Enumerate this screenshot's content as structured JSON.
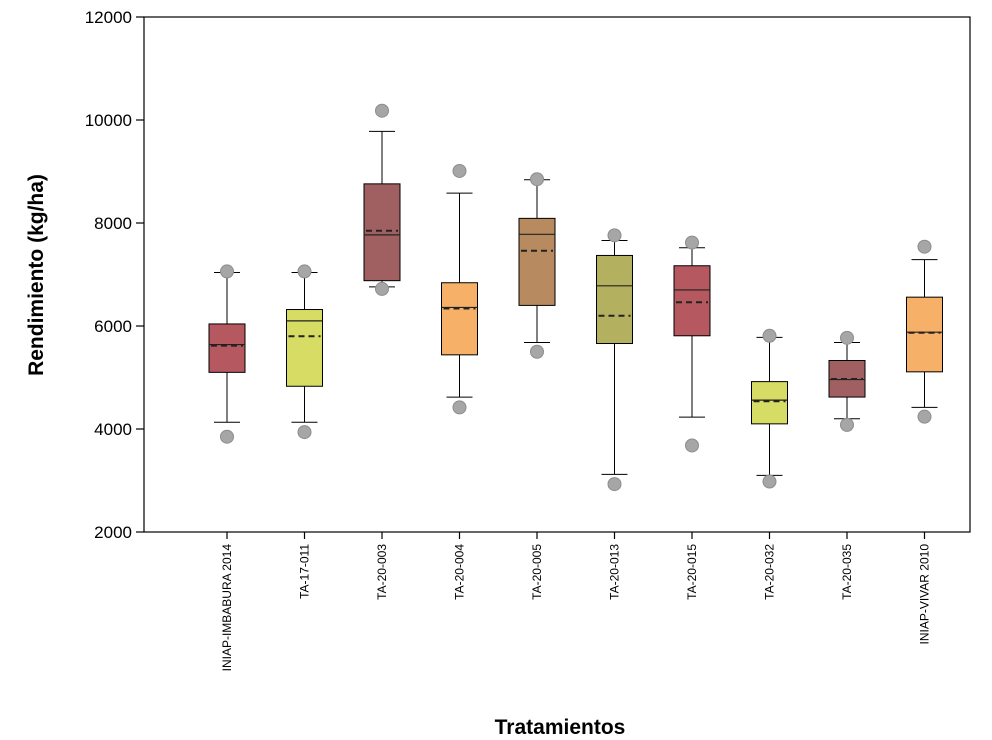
{
  "chart_data": {
    "type": "box",
    "title": "",
    "xlabel": "Tratamientos",
    "ylabel": "Rendimiento (kg/ha)",
    "ylim": [
      2000,
      12000
    ],
    "yticks": [
      2000,
      4000,
      6000,
      8000,
      10000,
      12000
    ],
    "grid": false,
    "legend": "none",
    "categories": [
      "INIAP-IMBABURA 2014",
      "TA-17-011",
      "TA-20-003",
      "TA-20-004",
      "TA-20-005",
      "TA-20-013",
      "TA-20-015",
      "TA-20-032",
      "TA-20-035",
      "INIAP-VIVAR 2010"
    ],
    "boxes": [
      {
        "whisker_low": 4130,
        "q1": 5100,
        "median": 5640,
        "mean": 5620,
        "q3": 6040,
        "whisker_high": 7040,
        "outliers": [
          3850,
          7060
        ],
        "color": "#b5585f"
      },
      {
        "whisker_low": 4130,
        "q1": 4830,
        "median": 6100,
        "mean": 5800,
        "q3": 6320,
        "whisker_high": 7040,
        "outliers": [
          3940,
          7060
        ],
        "color": "#d6dc64"
      },
      {
        "whisker_low": 6760,
        "q1": 6880,
        "median": 7770,
        "mean": 7850,
        "q3": 8760,
        "whisker_high": 9780,
        "outliers": [
          6720,
          10180
        ],
        "color": "#a06062"
      },
      {
        "whisker_low": 4620,
        "q1": 5440,
        "median": 6360,
        "mean": 6340,
        "q3": 6840,
        "whisker_high": 8580,
        "outliers": [
          4420,
          9010
        ],
        "color": "#f7b068"
      },
      {
        "whisker_low": 5680,
        "q1": 6400,
        "median": 7780,
        "mean": 7460,
        "q3": 8090,
        "whisker_high": 8840,
        "outliers": [
          5500,
          8850
        ],
        "color": "#b88a60"
      },
      {
        "whisker_low": 3120,
        "q1": 5660,
        "median": 6780,
        "mean": 6200,
        "q3": 7370,
        "whisker_high": 7660,
        "outliers": [
          2930,
          7760
        ],
        "color": "#b3b060"
      },
      {
        "whisker_low": 4230,
        "q1": 5810,
        "median": 6700,
        "mean": 6460,
        "q3": 7170,
        "whisker_high": 7520,
        "outliers": [
          3680,
          7620
        ],
        "color": "#b5585f"
      },
      {
        "whisker_low": 3100,
        "q1": 4100,
        "median": 4560,
        "mean": 4540,
        "q3": 4920,
        "whisker_high": 5780,
        "outliers": [
          2980,
          5810
        ],
        "color": "#d6dc64"
      },
      {
        "whisker_low": 4200,
        "q1": 4620,
        "median": 4960,
        "mean": 4970,
        "q3": 5330,
        "whisker_high": 5680,
        "outliers": [
          4080,
          5770
        ],
        "color": "#a06062"
      },
      {
        "whisker_low": 4420,
        "q1": 5110,
        "median": 5880,
        "mean": 5870,
        "q3": 6560,
        "whisker_high": 7290,
        "outliers": [
          4240,
          7540
        ],
        "color": "#f7b068"
      }
    ]
  }
}
